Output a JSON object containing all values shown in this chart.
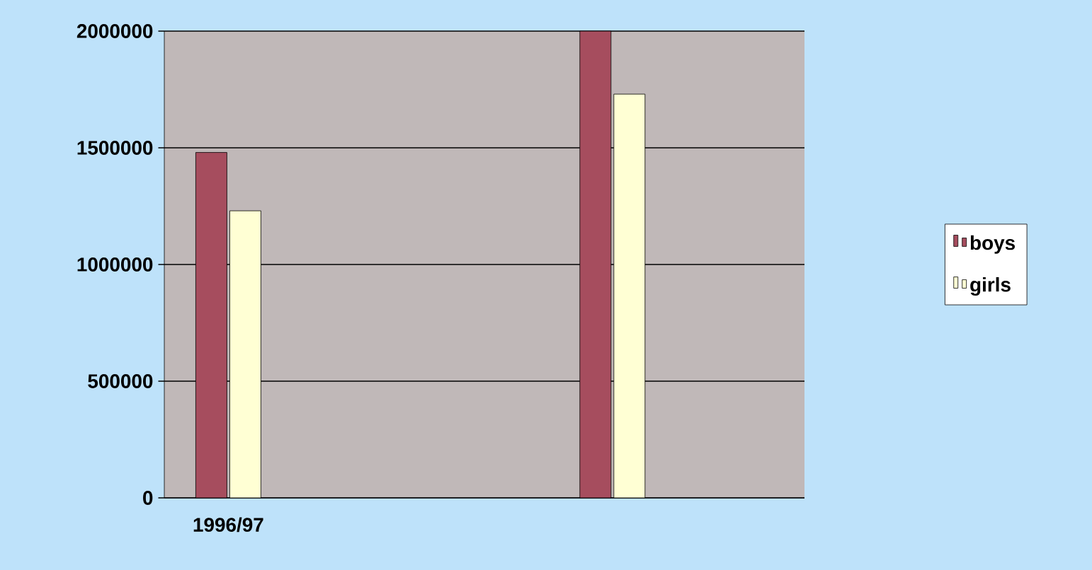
{
  "chart_data": {
    "type": "bar",
    "categories": [
      "1996/97",
      null,
      null,
      null,
      null
    ],
    "series": [
      {
        "name": "boys",
        "color": "#a64d5e",
        "values": [
          1480000,
          null,
          null,
          2000000,
          null
        ]
      },
      {
        "name": "girls",
        "color": "#ffffd4",
        "values": [
          1230000,
          null,
          null,
          1730000,
          null
        ]
      }
    ],
    "ylim": [
      0,
      2000000
    ],
    "yticks": [
      0,
      500000,
      1000000,
      1500000,
      2000000
    ],
    "grid": "y",
    "legend": "right"
  }
}
